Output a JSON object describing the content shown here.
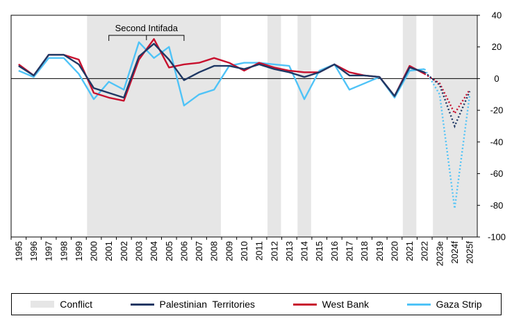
{
  "chart_data": {
    "type": "line",
    "categories": [
      "1995",
      "1996",
      "1997",
      "1998",
      "1999",
      "2000",
      "2001",
      "2002",
      "2003",
      "2004",
      "2005",
      "2006",
      "2007",
      "2008",
      "2009",
      "2010",
      "2011",
      "2012",
      "2013",
      "2014",
      "2015",
      "2016",
      "2017",
      "2018",
      "2019",
      "2020",
      "2021",
      "2022",
      "2023e",
      "2024f",
      "2025f"
    ],
    "ylim": [
      -100,
      40
    ],
    "yticks": [
      40,
      20,
      0,
      -20,
      -40,
      -60,
      -80,
      -100
    ],
    "grid": false,
    "legend_position": "bottom",
    "forecast_categories": [
      "2023e",
      "2024f",
      "2025f"
    ],
    "conflict_periods": [
      {
        "from": "2000",
        "to": "2008"
      },
      {
        "from": "2012",
        "to": "2012"
      },
      {
        "from": "2014",
        "to": "2014"
      },
      {
        "from": "2021",
        "to": "2021"
      },
      {
        "from": "2023e",
        "to": "2025f"
      }
    ],
    "annotations": [
      {
        "text": "Second Intifada",
        "from": "2001",
        "to": "2006"
      }
    ],
    "series": [
      {
        "name": "Palestinian  Territories",
        "color": "#1f3864",
        "values": [
          8,
          2,
          15,
          15,
          9,
          -6,
          -9,
          -12,
          14,
          22,
          12,
          -1,
          4,
          8,
          8,
          6,
          9,
          6,
          4,
          1,
          4,
          9,
          2,
          2,
          1,
          -11,
          7,
          4,
          -4,
          -30,
          -8
        ]
      },
      {
        "name": "West Bank",
        "color": "#c8102e",
        "values": [
          9,
          2,
          15,
          15,
          12,
          -9,
          -12,
          -14,
          12,
          25,
          7,
          9,
          10,
          13,
          10,
          5,
          10,
          7,
          5,
          4,
          4,
          9,
          4,
          2,
          1,
          -11,
          8,
          3,
          -3,
          -22,
          -7
        ]
      },
      {
        "name": "Gaza Strip",
        "color": "#4fc3f7",
        "values": [
          5,
          1,
          13,
          13,
          3,
          -13,
          -2,
          -7,
          23,
          13,
          20,
          -17,
          -10,
          -7,
          8,
          10,
          10,
          9,
          8,
          -13,
          5,
          9,
          -7,
          -3,
          1,
          -12,
          5,
          6,
          -10,
          -82,
          -10
        ]
      }
    ]
  },
  "legend": {
    "conflict_label": "Conflict",
    "pt_label": "Palestinian  Territories",
    "wb_label": "West Bank",
    "gaza_label": "Gaza Strip"
  },
  "colors": {
    "conflict_band": "#e6e6e6",
    "pt": "#1f3864",
    "wb": "#c8102e",
    "gaza": "#4fc3f7"
  }
}
